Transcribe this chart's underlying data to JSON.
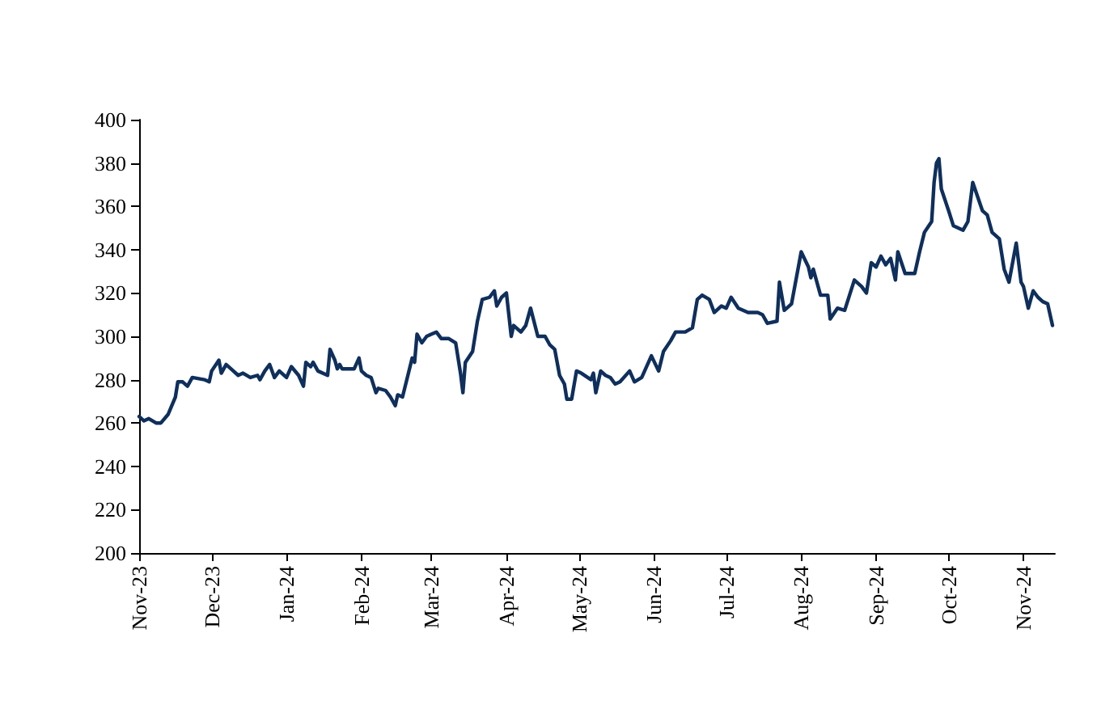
{
  "chart_data": {
    "type": "line",
    "color": "#0f2f5c",
    "line_style": "solid",
    "marker": "none",
    "x": [
      "2023-11-01",
      "2023-11-03",
      "2023-11-05",
      "2023-11-08",
      "2023-11-10",
      "2023-11-13",
      "2023-11-16",
      "2023-11-17",
      "2023-11-19",
      "2023-11-21",
      "2023-11-23",
      "2023-11-28",
      "2023-11-30",
      "2023-12-01",
      "2023-12-04",
      "2023-12-05",
      "2023-12-07",
      "2023-12-10",
      "2023-12-12",
      "2023-12-14",
      "2023-12-17",
      "2023-12-20",
      "2023-12-21",
      "2023-12-23",
      "2023-12-25",
      "2023-12-27",
      "2023-12-29",
      "2024-01-01",
      "2024-01-03",
      "2024-01-06",
      "2024-01-08",
      "2024-01-09",
      "2024-01-11",
      "2024-01-12",
      "2024-01-14",
      "2024-01-18",
      "2024-01-19",
      "2024-01-21",
      "2024-01-22",
      "2024-01-23",
      "2024-01-24",
      "2024-01-29",
      "2024-01-31",
      "2024-02-01",
      "2024-02-03",
      "2024-02-05",
      "2024-02-07",
      "2024-02-08",
      "2024-02-11",
      "2024-02-13",
      "2024-02-15",
      "2024-02-16",
      "2024-02-18",
      "2024-02-20",
      "2024-02-22",
      "2024-02-23",
      "2024-02-24",
      "2024-02-26",
      "2024-02-28",
      "2024-03-01",
      "2024-03-03",
      "2024-03-05",
      "2024-03-08",
      "2024-03-11",
      "2024-03-13",
      "2024-03-14",
      "2024-03-15",
      "2024-03-18",
      "2024-03-20",
      "2024-03-22",
      "2024-03-25",
      "2024-03-27",
      "2024-03-28",
      "2024-03-30",
      "2024-04-01",
      "2024-04-02",
      "2024-04-03",
      "2024-04-04",
      "2024-04-07",
      "2024-04-09",
      "2024-04-11",
      "2024-04-14",
      "2024-04-17",
      "2024-04-19",
      "2024-04-21",
      "2024-04-23",
      "2024-04-25",
      "2024-04-26",
      "2024-04-28",
      "2024-04-30",
      "2024-05-02",
      "2024-05-06",
      "2024-05-07",
      "2024-05-08",
      "2024-05-10",
      "2024-05-12",
      "2024-05-14",
      "2024-05-16",
      "2024-05-18",
      "2024-05-22",
      "2024-05-24",
      "2024-05-27",
      "2024-05-31",
      "2024-06-03",
      "2024-06-05",
      "2024-06-08",
      "2024-06-10",
      "2024-06-14",
      "2024-06-17",
      "2024-06-19",
      "2024-06-21",
      "2024-06-24",
      "2024-06-26",
      "2024-06-29",
      "2024-07-01",
      "2024-07-03",
      "2024-07-06",
      "2024-07-10",
      "2024-07-14",
      "2024-07-16",
      "2024-07-18",
      "2024-07-22",
      "2024-07-23",
      "2024-07-25",
      "2024-07-28",
      "2024-08-01",
      "2024-08-04",
      "2024-08-05",
      "2024-08-06",
      "2024-08-09",
      "2024-08-12",
      "2024-08-13",
      "2024-08-16",
      "2024-08-19",
      "2024-08-23",
      "2024-08-26",
      "2024-08-28",
      "2024-08-30",
      "2024-09-01",
      "2024-09-03",
      "2024-09-05",
      "2024-09-07",
      "2024-09-09",
      "2024-09-10",
      "2024-09-13",
      "2024-09-17",
      "2024-09-19",
      "2024-09-21",
      "2024-09-24",
      "2024-09-25",
      "2024-09-26",
      "2024-09-27",
      "2024-09-28",
      "2024-10-01",
      "2024-10-03",
      "2024-10-07",
      "2024-10-09",
      "2024-10-11",
      "2024-10-15",
      "2024-10-17",
      "2024-10-19",
      "2024-10-22",
      "2024-10-24",
      "2024-10-26",
      "2024-10-29",
      "2024-10-31",
      "2024-11-01",
      "2024-11-03",
      "2024-11-05",
      "2024-11-07",
      "2024-11-09",
      "2024-11-11",
      "2024-11-13"
    ],
    "values": [
      263,
      261,
      262,
      260,
      260,
      264,
      272,
      279,
      279,
      277,
      281,
      280,
      279,
      284,
      289,
      283,
      287,
      284,
      282,
      283,
      281,
      282,
      280,
      284,
      287,
      281,
      284,
      281,
      286,
      282,
      277,
      288,
      286,
      288,
      284,
      282,
      294,
      289,
      285,
      287,
      285,
      285,
      290,
      284,
      282,
      281,
      274,
      276,
      275,
      272,
      268,
      273,
      272,
      281,
      290,
      288,
      301,
      297,
      300,
      301,
      302,
      299,
      299,
      297,
      283,
      274,
      288,
      293,
      307,
      317,
      318,
      321,
      314,
      318,
      320,
      310,
      300,
      305,
      302,
      305,
      313,
      300,
      300,
      296,
      294,
      282,
      278,
      271,
      271,
      284,
      283,
      280,
      283,
      274,
      284,
      282,
      281,
      278,
      279,
      284,
      279,
      281,
      291,
      284,
      293,
      298,
      302,
      302,
      304,
      317,
      319,
      317,
      311,
      314,
      313,
      318,
      313,
      311,
      311,
      310,
      306,
      307,
      325,
      312,
      315,
      339,
      332,
      327,
      331,
      319,
      319,
      308,
      313,
      312,
      326,
      323,
      320,
      334,
      332,
      337,
      333,
      336,
      326,
      339,
      329,
      329,
      339,
      348,
      353,
      371,
      380,
      382,
      368,
      358,
      351,
      349,
      353,
      371,
      358,
      356,
      348,
      345,
      331,
      325,
      343,
      325,
      323,
      313,
      321,
      318,
      316,
      315,
      305
    ],
    "xlim": [
      "2023-11-01",
      "2024-11-14"
    ],
    "xticks": [
      {
        "value": "2023-11-01",
        "label": "Nov-23"
      },
      {
        "value": "2023-12-01",
        "label": "Dec-23"
      },
      {
        "value": "2024-01-01",
        "label": "Jan-24"
      },
      {
        "value": "2024-02-01",
        "label": "Feb-24"
      },
      {
        "value": "2024-03-01",
        "label": "Mar-24"
      },
      {
        "value": "2024-04-01",
        "label": "Apr-24"
      },
      {
        "value": "2024-05-01",
        "label": "May-24"
      },
      {
        "value": "2024-06-01",
        "label": "Jun-24"
      },
      {
        "value": "2024-07-01",
        "label": "Jul-24"
      },
      {
        "value": "2024-08-01",
        "label": "Aug-24"
      },
      {
        "value": "2024-09-01",
        "label": "Sep-24"
      },
      {
        "value": "2024-10-01",
        "label": "Oct-24"
      },
      {
        "value": "2024-11-01",
        "label": "Nov-24"
      }
    ],
    "ylim": [
      200,
      400
    ],
    "yticks": [
      200,
      220,
      240,
      260,
      280,
      300,
      320,
      340,
      360,
      380,
      400
    ]
  }
}
